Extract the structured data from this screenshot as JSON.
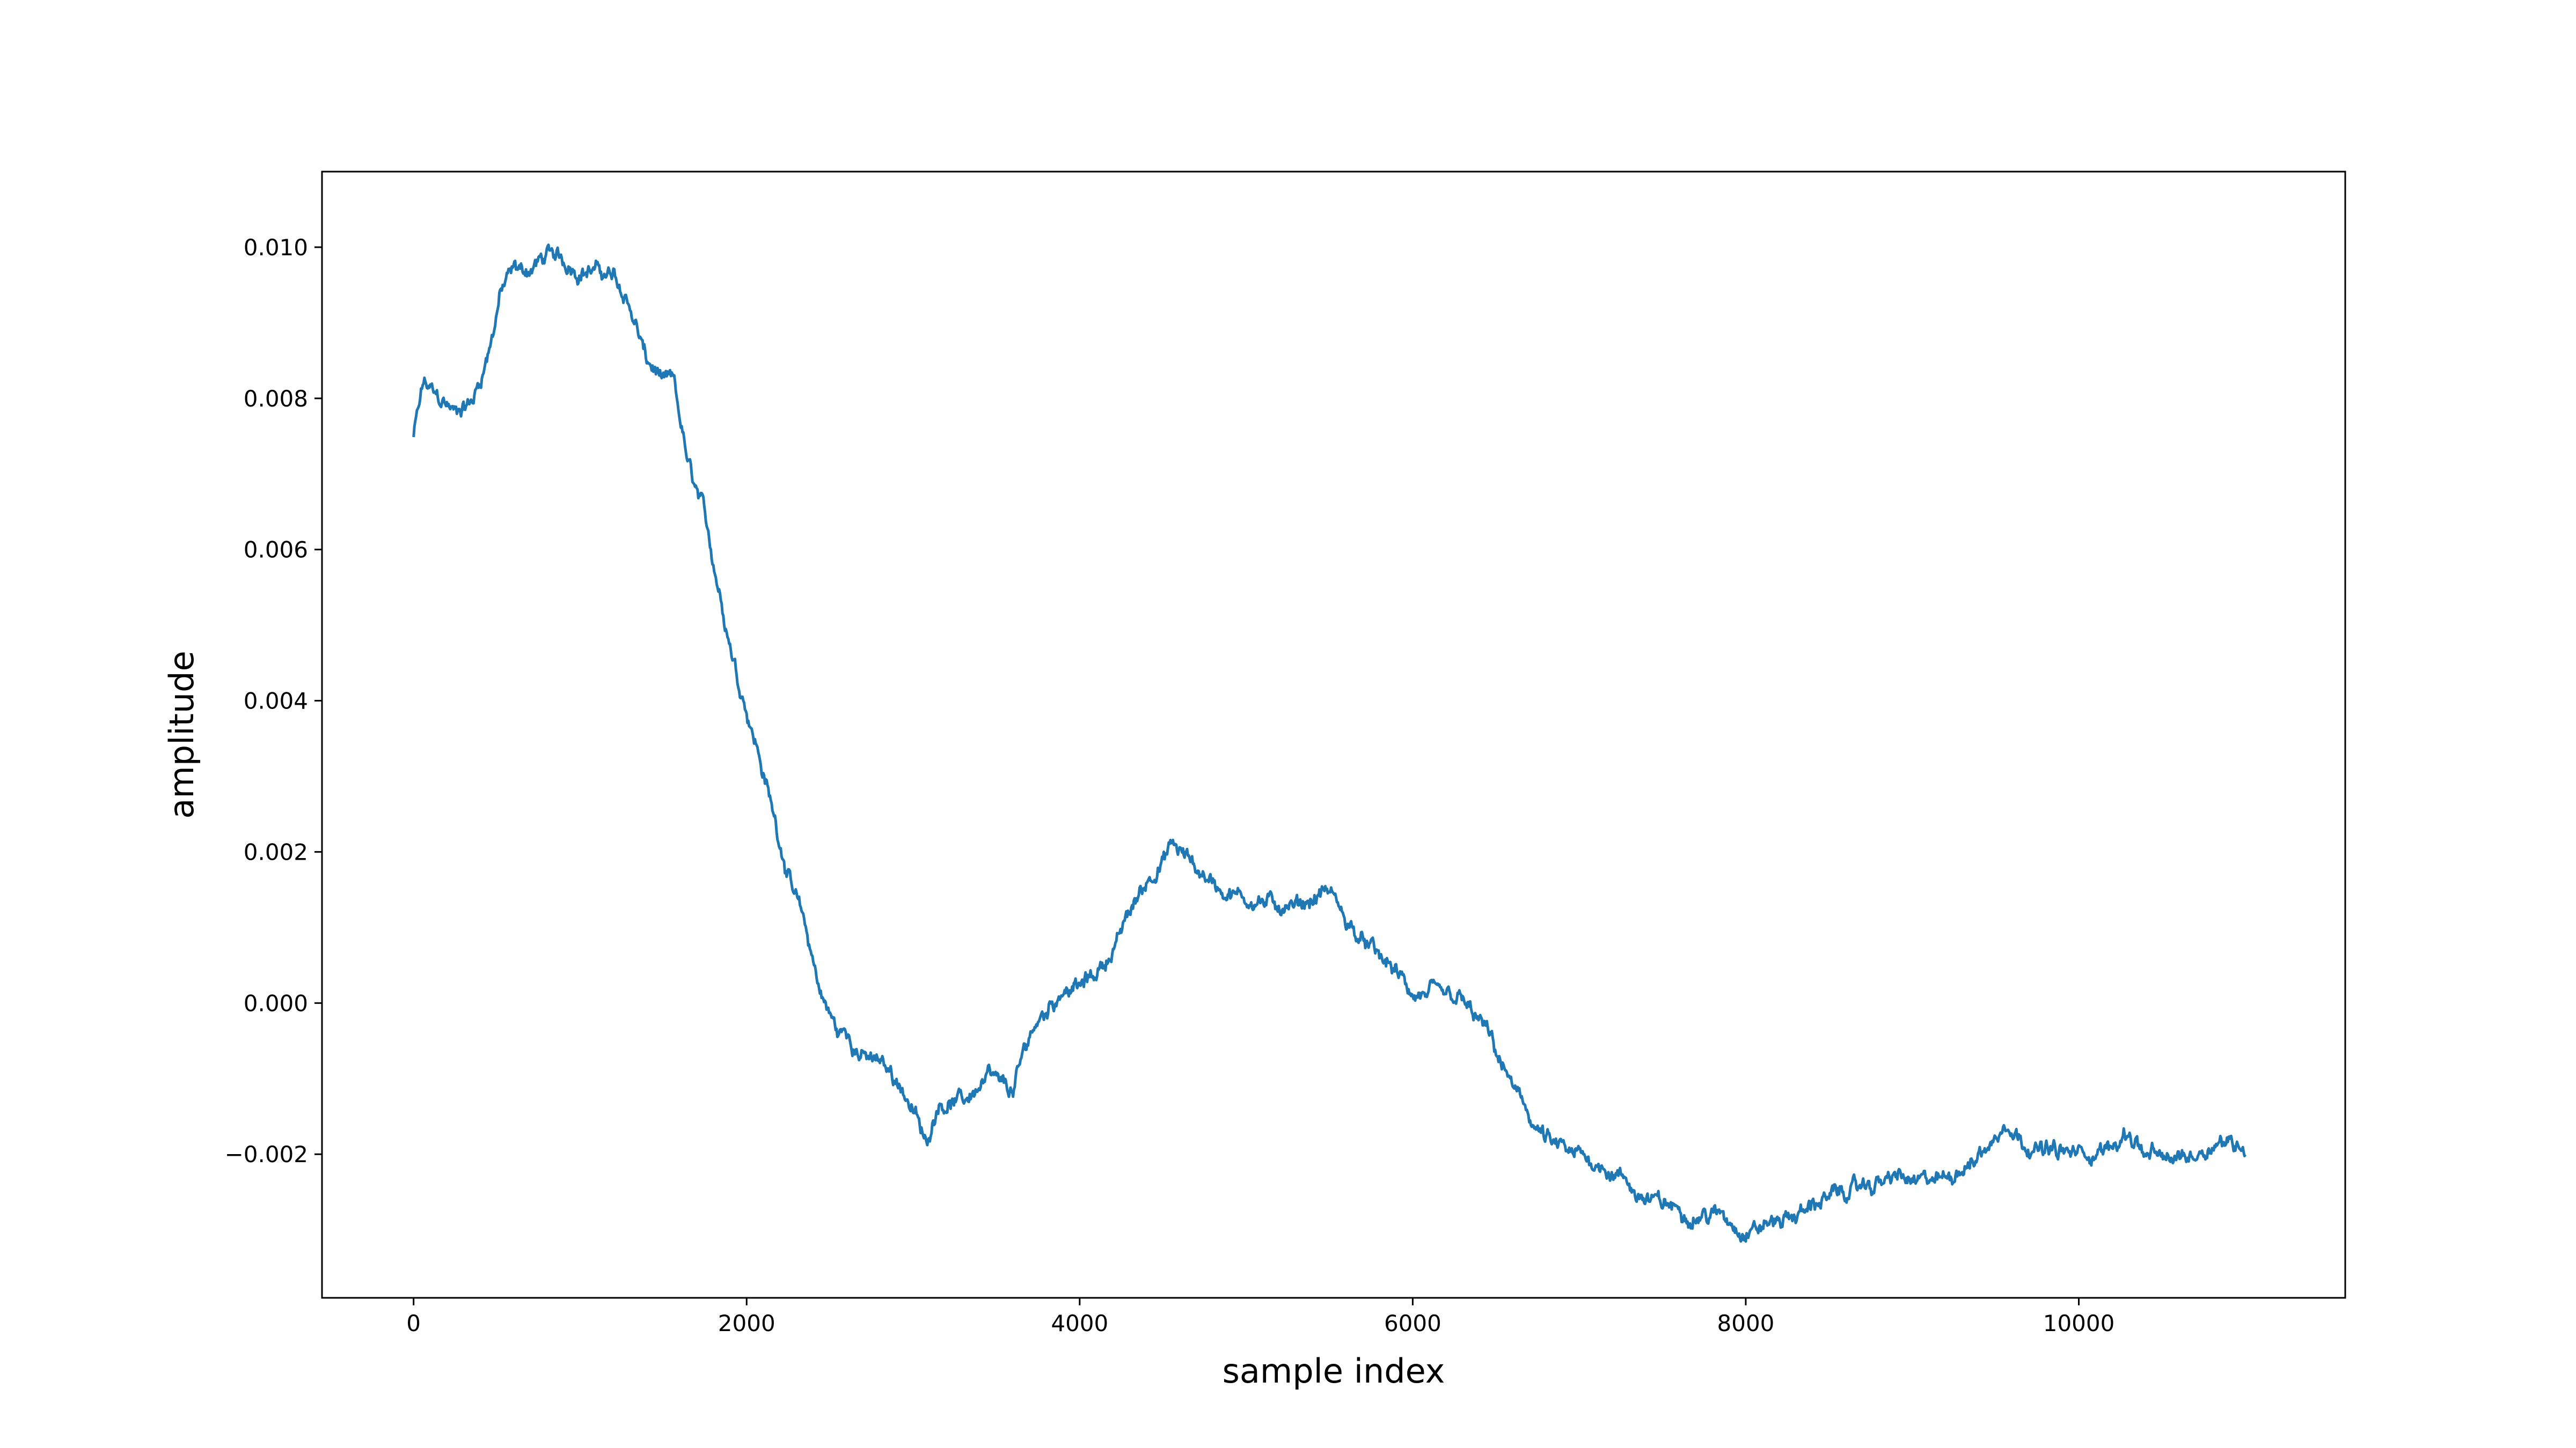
{
  "chart_data": {
    "type": "line",
    "title": "",
    "xlabel": "sample index",
    "ylabel": "amplitude",
    "xlim": [
      -550,
      11600
    ],
    "ylim": [
      -0.0039,
      0.011
    ],
    "xticks": [
      0,
      2000,
      4000,
      6000,
      8000,
      10000
    ],
    "xtick_labels": [
      "0",
      "2000",
      "4000",
      "6000",
      "8000",
      "10000"
    ],
    "yticks": [
      -0.002,
      0.0,
      0.002,
      0.004,
      0.006,
      0.008,
      0.01
    ],
    "ytick_labels": [
      "−0.002",
      "0.000",
      "0.002",
      "0.004",
      "0.006",
      "0.008",
      "0.010"
    ],
    "grid": false,
    "legend": "none",
    "series": [
      {
        "color": "#1f77b4",
        "noise_amplitude": 0.00018,
        "x": [
          0,
          60,
          150,
          250,
          360,
          450,
          520,
          600,
          700,
          800,
          900,
          1000,
          1100,
          1200,
          1300,
          1400,
          1500,
          1560,
          1650,
          1750,
          1850,
          1950,
          2050,
          2150,
          2250,
          2350,
          2450,
          2550,
          2600,
          2700,
          2800,
          2900,
          3000,
          3080,
          3150,
          3300,
          3450,
          3600,
          3700,
          3800,
          3900,
          4000,
          4100,
          4200,
          4300,
          4400,
          4500,
          4560,
          4650,
          4750,
          4850,
          5000,
          5150,
          5300,
          5400,
          5500,
          5600,
          5700,
          5800,
          5900,
          6000,
          6150,
          6300,
          6450,
          6550,
          6650,
          6750,
          6850,
          6950,
          7100,
          7250,
          7400,
          7550,
          7700,
          7850,
          8000,
          8150,
          8300,
          8450,
          8600,
          8750,
          8900,
          9050,
          9200,
          9350,
          9500,
          9570,
          9650,
          9750,
          9900,
          10050,
          10200,
          10300,
          10400,
          10550,
          10700,
          10850,
          11000
        ],
        "y": [
          0.0075,
          0.0082,
          0.008,
          0.0078,
          0.008,
          0.0086,
          0.0094,
          0.0097,
          0.0097,
          0.0099,
          0.0098,
          0.0097,
          0.0097,
          0.0096,
          0.0092,
          0.0085,
          0.0082,
          0.0082,
          0.0071,
          0.0064,
          0.0053,
          0.0043,
          0.0035,
          0.0026,
          0.0017,
          0.001,
          0.0001,
          -0.0004,
          -0.0004,
          -0.0007,
          -0.0008,
          -0.001,
          -0.0014,
          -0.0019,
          -0.0013,
          -0.0013,
          -0.001,
          -0.0012,
          -0.0004,
          -0.0001,
          0.0002,
          0.0002,
          0.0004,
          0.0007,
          0.0012,
          0.0016,
          0.0019,
          0.0021,
          0.0019,
          0.0017,
          0.0015,
          0.0014,
          0.0013,
          0.0013,
          0.0014,
          0.0015,
          0.0011,
          0.0008,
          0.0006,
          0.0004,
          0.0001,
          0.0001,
          0.0,
          -0.0004,
          -0.0009,
          -0.0013,
          -0.0017,
          -0.0019,
          -0.002,
          -0.0021,
          -0.0023,
          -0.0026,
          -0.0027,
          -0.0028,
          -0.0028,
          -0.003,
          -0.0029,
          -0.0028,
          -0.0026,
          -0.0025,
          -0.0024,
          -0.0023,
          -0.0024,
          -0.0023,
          -0.0021,
          -0.0018,
          -0.0015,
          -0.0018,
          -0.0019,
          -0.002,
          -0.002,
          -0.0019,
          -0.0017,
          -0.002,
          -0.0021,
          -0.002,
          -0.0018,
          -0.0019
        ]
      }
    ]
  }
}
